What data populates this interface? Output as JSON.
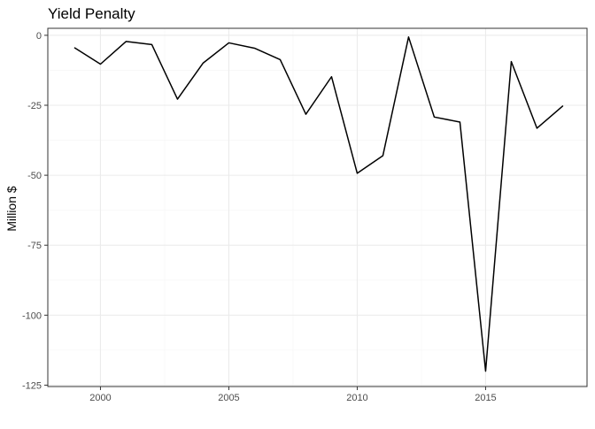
{
  "chart_data": {
    "type": "line",
    "title": "Yield Penalty",
    "xlabel": "",
    "ylabel": "Million $",
    "x": [
      1999,
      2000,
      2001,
      2002,
      2003,
      2004,
      2005,
      2006,
      2007,
      2008,
      2009,
      2010,
      2011,
      2012,
      2013,
      2014,
      2015,
      2016,
      2017,
      2018
    ],
    "series": [
      {
        "name": "",
        "values": [
          -4.5,
          -10.3,
          -2.2,
          -3.3,
          -22.8,
          -9.9,
          -2.7,
          -4.6,
          -8.7,
          -28.2,
          -14.8,
          -49.3,
          -43.0,
          -0.6,
          -29.2,
          -31.0,
          -120.0,
          -9.4,
          -33.2,
          -25.3
        ]
      }
    ],
    "xlim": [
      1997.95,
      2018.95
    ],
    "ylim": [
      -125.5,
      2.5
    ],
    "x_ticks": [
      2000,
      2005,
      2010,
      2015
    ],
    "x_tick_labels": [
      "2000",
      "2005",
      "2010",
      "2015"
    ],
    "y_ticks": [
      0,
      -25,
      -50,
      -75,
      -100,
      -125
    ],
    "y_tick_labels": [
      "0",
      "-25",
      "-50",
      "-75",
      "-100",
      "-125"
    ],
    "grid": true,
    "legend": "none",
    "colors": {
      "line": "#000000",
      "grid_major": "#ebebeb",
      "grid_minor": "#f5f5f5",
      "panel_border": "#333333",
      "axis_text": "#4d4d4d",
      "title": "#000000"
    }
  }
}
